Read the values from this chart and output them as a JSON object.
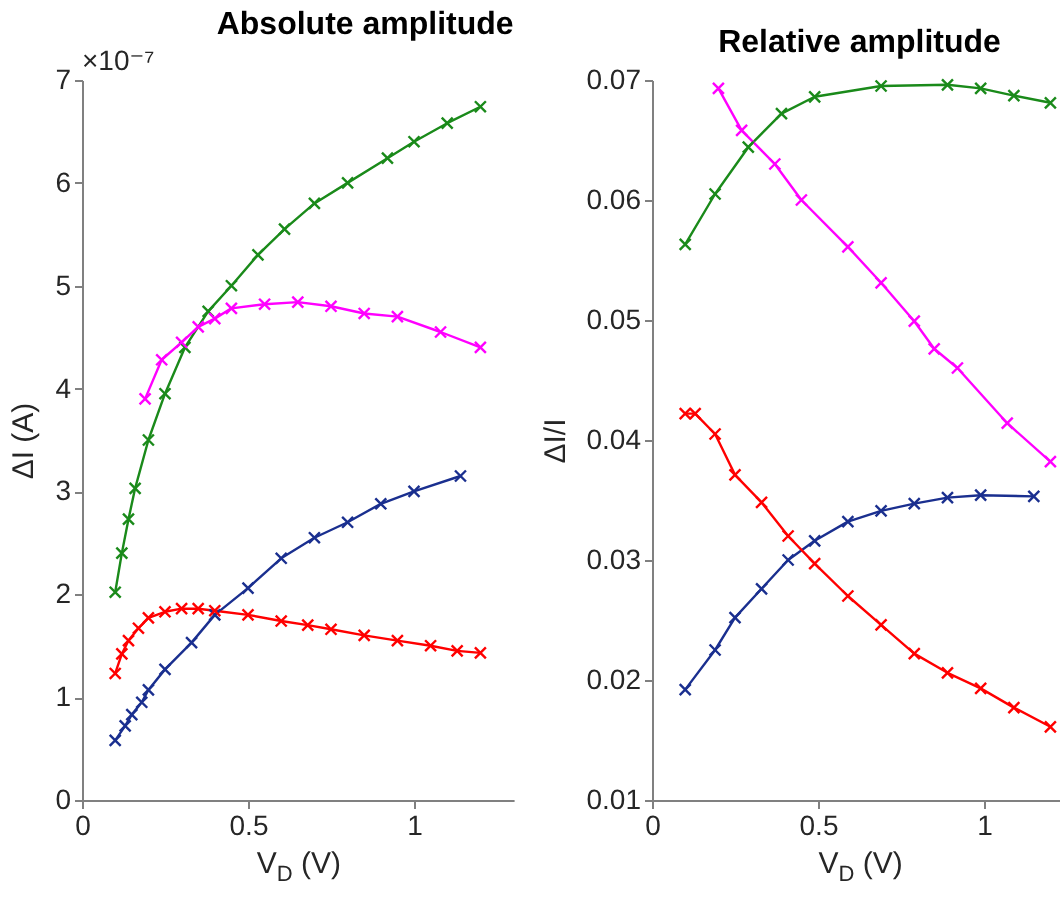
{
  "chart_data": [
    {
      "type": "line",
      "title": "Absolute amplitude",
      "xlabel": "V$_{D}$ (V)",
      "ylabel": "ΔI (A)",
      "annotations": [
        "×10⁻⁷"
      ],
      "xlim": [
        0,
        1.3
      ],
      "xticks": [
        0,
        0.5,
        1
      ],
      "ylim": [
        0,
        7
      ],
      "yticks": [
        0,
        1,
        2,
        3,
        4,
        5,
        6,
        7
      ],
      "grid": false,
      "legend": false,
      "marker": "cross",
      "line_style": "solid",
      "series": [
        {
          "color": "#1a8a1a",
          "x": [
            0.1,
            0.12,
            0.14,
            0.16,
            0.2,
            0.25,
            0.31,
            0.38,
            0.45,
            0.53,
            0.61,
            0.7,
            0.8,
            0.92,
            1.0,
            1.1,
            1.2
          ],
          "values": [
            2.02,
            2.4,
            2.73,
            3.03,
            3.5,
            3.95,
            4.4,
            4.75,
            5.0,
            5.3,
            5.55,
            5.8,
            6.0,
            6.24,
            6.4,
            6.58,
            6.74
          ]
        },
        {
          "color": "#ff00ff",
          "x": [
            0.19,
            0.24,
            0.3,
            0.35,
            0.4,
            0.45,
            0.55,
            0.65,
            0.75,
            0.85,
            0.95,
            1.08,
            1.2
          ],
          "values": [
            3.9,
            4.28,
            4.45,
            4.6,
            4.68,
            4.78,
            4.82,
            4.84,
            4.8,
            4.73,
            4.7,
            4.55,
            4.4
          ]
        },
        {
          "color": "#1a2f8f",
          "x": [
            0.1,
            0.13,
            0.15,
            0.18,
            0.2,
            0.25,
            0.33,
            0.4,
            0.5,
            0.6,
            0.7,
            0.8,
            0.9,
            1.0,
            1.14
          ],
          "values": [
            0.58,
            0.72,
            0.83,
            0.95,
            1.07,
            1.27,
            1.53,
            1.8,
            2.06,
            2.35,
            2.55,
            2.7,
            2.88,
            3.0,
            3.15
          ]
        },
        {
          "color": "#ff0000",
          "x": [
            0.1,
            0.12,
            0.14,
            0.17,
            0.2,
            0.25,
            0.3,
            0.35,
            0.4,
            0.5,
            0.6,
            0.68,
            0.75,
            0.85,
            0.95,
            1.05,
            1.13,
            1.2
          ],
          "values": [
            1.23,
            1.42,
            1.55,
            1.67,
            1.77,
            1.83,
            1.86,
            1.86,
            1.84,
            1.8,
            1.74,
            1.7,
            1.66,
            1.6,
            1.55,
            1.5,
            1.45,
            1.43
          ]
        }
      ]
    },
    {
      "type": "line",
      "title": "Relative amplitude",
      "xlabel": "V$_{D}$ (V)",
      "ylabel": "ΔI/I",
      "xlim": [
        0,
        1.25
      ],
      "xticks": [
        0,
        0.5,
        1
      ],
      "ylim": [
        0.01,
        0.07
      ],
      "yticks": [
        0.01,
        0.02,
        0.03,
        0.04,
        0.05,
        0.06,
        0.07
      ],
      "grid": false,
      "legend": false,
      "marker": "cross",
      "line_style": "solid",
      "series": [
        {
          "color": "#1a8a1a",
          "x": [
            0.1,
            0.19,
            0.29,
            0.39,
            0.49,
            0.69,
            0.89,
            0.99,
            1.09,
            1.2
          ],
          "values": [
            0.0563,
            0.0605,
            0.0644,
            0.0672,
            0.0686,
            0.0695,
            0.0696,
            0.0693,
            0.0687,
            0.0681
          ]
        },
        {
          "color": "#ff00ff",
          "x": [
            0.2,
            0.27,
            0.37,
            0.45,
            0.59,
            0.69,
            0.79,
            0.85,
            0.92,
            1.07,
            1.2
          ],
          "values": [
            0.0693,
            0.0658,
            0.063,
            0.06,
            0.0561,
            0.0531,
            0.0499,
            0.0476,
            0.046,
            0.0414,
            0.0382
          ]
        },
        {
          "color": "#1a2f8f",
          "x": [
            0.1,
            0.19,
            0.25,
            0.33,
            0.41,
            0.49,
            0.59,
            0.69,
            0.79,
            0.89,
            0.99,
            1.15
          ],
          "values": [
            0.0192,
            0.0225,
            0.0252,
            0.0276,
            0.03,
            0.0316,
            0.0332,
            0.0341,
            0.0347,
            0.0352,
            0.0354,
            0.0353
          ]
        },
        {
          "color": "#ff0000",
          "x": [
            0.1,
            0.13,
            0.19,
            0.25,
            0.33,
            0.41,
            0.49,
            0.59,
            0.69,
            0.79,
            0.89,
            0.99,
            1.09,
            1.2
          ],
          "values": [
            0.0422,
            0.0422,
            0.0405,
            0.0371,
            0.0348,
            0.032,
            0.0297,
            0.027,
            0.0246,
            0.0222,
            0.0206,
            0.0193,
            0.0177,
            0.0161
          ]
        }
      ]
    }
  ]
}
